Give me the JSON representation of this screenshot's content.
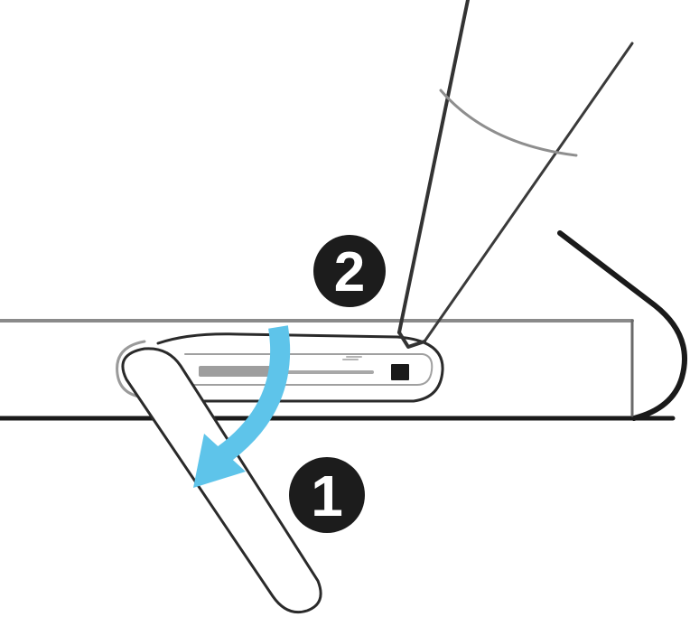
{
  "steps": [
    {
      "number": "1"
    },
    {
      "number": "2"
    }
  ],
  "colors": {
    "line": "#1a1a1a",
    "light_line": "#bdbdbd",
    "arrow": "#5ec4ea",
    "badge_fill": "#1c1c1c",
    "badge_text": "#ffffff",
    "slot_bar": "#9e9e9e"
  },
  "icons": {
    "step_one": "badge-number-icon",
    "step_two": "badge-number-icon",
    "direction": "curved-arrow-icon"
  }
}
